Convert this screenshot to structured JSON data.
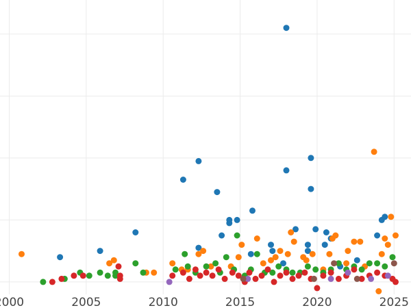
{
  "chart_data": {
    "type": "scatter",
    "title": "",
    "xlabel": "",
    "ylabel": "",
    "xlim": [
      1999.4,
      2026.1
    ],
    "ylim": [
      -0.4,
      9.1
    ],
    "x_ticks": [
      2000,
      2005,
      2010,
      2015,
      2020,
      2025
    ],
    "x_tick_labels": [
      "2000",
      "2005",
      "2010",
      "2015",
      "2020",
      "2025"
    ],
    "y_gridlines": [
      0,
      2,
      4,
      6,
      8
    ],
    "grid": true,
    "legend": "none",
    "series": [
      {
        "color": "#1f77b4",
        "x": [
          2003.3,
          2005.9,
          2008.2,
          2011.3,
          2012.3,
          2012.3,
          2013.5,
          2013.8,
          2014.3,
          2014.3,
          2014.8,
          2015.8,
          2015.7,
          2017.0,
          2017.1,
          2017.8,
          2018.0,
          2018.0,
          2018.6,
          2019.4,
          2019.4,
          2019.6,
          2019.6,
          2019.9,
          2020.5,
          2020.6,
          2020.9,
          2021.5,
          2022.6,
          2023.9,
          2024.2,
          2024.4
        ],
        "y": [
          0.8,
          1.0,
          1.6,
          3.3,
          3.9,
          1.1,
          2.9,
          1.5,
          1.9,
          2.0,
          2.0,
          2.3,
          0.9,
          1.2,
          1.0,
          0.6,
          8.2,
          3.6,
          1.7,
          1.2,
          1.0,
          3.0,
          4.0,
          1.7,
          1.2,
          1.6,
          1.4,
          0.5,
          0.7,
          1.5,
          2.0,
          2.1
        ]
      },
      {
        "color": "#ff7f0e",
        "x": [
          2000.8,
          2006.5,
          2006.8,
          2008.9,
          2009.4,
          2010.6,
          2011.2,
          2011.6,
          2012.3,
          2012.6,
          2013.1,
          2014.4,
          2014.9,
          2015.1,
          2016.1,
          2016.5,
          2017.0,
          2017.3,
          2017.6,
          2018.1,
          2018.3,
          2018.5,
          2019.1,
          2019.3,
          2019.7,
          2020.4,
          2020.8,
          2021.0,
          2021.2,
          2021.9,
          2022.0,
          2022.4,
          2022.8,
          2023.1,
          2023.7,
          2024.0,
          2024.2,
          2024.4,
          2024.6,
          2024.8,
          2025.1
        ],
        "y": [
          0.9,
          0.6,
          0.7,
          0.3,
          0.3,
          0.6,
          0.4,
          0.4,
          0.9,
          1.0,
          0.5,
          0.5,
          0.8,
          1.2,
          1.4,
          0.6,
          0.7,
          0.8,
          1.0,
          0.9,
          1.6,
          1.3,
          0.8,
          0.7,
          0.9,
          0.4,
          0.9,
          1.4,
          1.5,
          0.6,
          1.0,
          1.3,
          1.3,
          0.5,
          4.2,
          -0.3,
          0.9,
          1.4,
          1.2,
          2.1,
          1.5
        ]
      },
      {
        "color": "#2ca02c",
        "x": [
          2002.2,
          2003.6,
          2004.6,
          2005.2,
          2005.9,
          2006.4,
          2006.9,
          2006.9,
          2008.2,
          2008.7,
          2010.8,
          2011.4,
          2011.6,
          2012.1,
          2012.8,
          2013.4,
          2013.7,
          2014.1,
          2014.6,
          2014.8,
          2015.3,
          2015.7,
          2016.1,
          2016.6,
          2017.1,
          2017.5,
          2018.0,
          2018.4,
          2018.9,
          2019.4,
          2019.9,
          2020.4,
          2020.9,
          2021.4,
          2021.9,
          2022.4,
          2022.9,
          2023.4,
          2023.9,
          2024.4,
          2024.9
        ],
        "y": [
          0.0,
          0.1,
          0.3,
          0.2,
          0.3,
          0.2,
          0.2,
          0.3,
          0.6,
          0.3,
          0.4,
          0.9,
          0.5,
          0.3,
          0.5,
          0.6,
          0.3,
          0.8,
          0.4,
          1.5,
          0.2,
          0.4,
          0.9,
          0.3,
          0.3,
          0.5,
          0.4,
          0.3,
          0.3,
          0.5,
          0.4,
          0.3,
          0.4,
          0.6,
          0.4,
          0.5,
          0.4,
          0.6,
          0.6,
          0.5,
          0.8
        ]
      },
      {
        "color": "#d62728",
        "x": [
          2002.8,
          2003.4,
          2004.2,
          2004.8,
          2007.1,
          2007.2,
          2007.2,
          2010.6,
          2011.3,
          2011.7,
          2012.1,
          2012.4,
          2012.8,
          2013.2,
          2013.6,
          2014.0,
          2014.5,
          2014.9,
          2015.3,
          2015.6,
          2016.0,
          2016.4,
          2016.8,
          2017.2,
          2017.6,
          2018.0,
          2018.4,
          2018.8,
          2019.2,
          2019.6,
          2020.0,
          2020.4,
          2020.9,
          2021.4,
          2021.9,
          2022.4,
          2022.9,
          2023.4,
          2023.9,
          2024.4,
          2024.9,
          2025.1
        ],
        "y": [
          0.0,
          0.1,
          0.2,
          0.2,
          0.5,
          0.2,
          0.1,
          0.2,
          0.3,
          0.1,
          0.4,
          0.2,
          0.3,
          0.2,
          0.4,
          0.1,
          0.3,
          0.2,
          0.0,
          0.3,
          0.1,
          0.2,
          0.4,
          0.0,
          0.2,
          0.3,
          0.1,
          0.2,
          0.3,
          0.1,
          -0.2,
          0.2,
          0.3,
          0.1,
          0.2,
          0.4,
          0.1,
          0.2,
          0.3,
          0.2,
          0.1,
          0.0
        ]
      },
      {
        "color": "#9467bd",
        "x": [
          2010.4,
          2015.5,
          2020.9,
          2022.0,
          2023.5,
          2024.6
        ],
        "y": [
          0.0,
          0.1,
          0.1,
          0.3,
          0.1,
          0.2
        ]
      },
      {
        "color": "#8c564b",
        "x": [
          2015.2,
          2019.8,
          2021.1,
          2022.6,
          2025.0
        ],
        "y": [
          0.1,
          0.1,
          0.6,
          0.1,
          0.6
        ]
      }
    ]
  }
}
